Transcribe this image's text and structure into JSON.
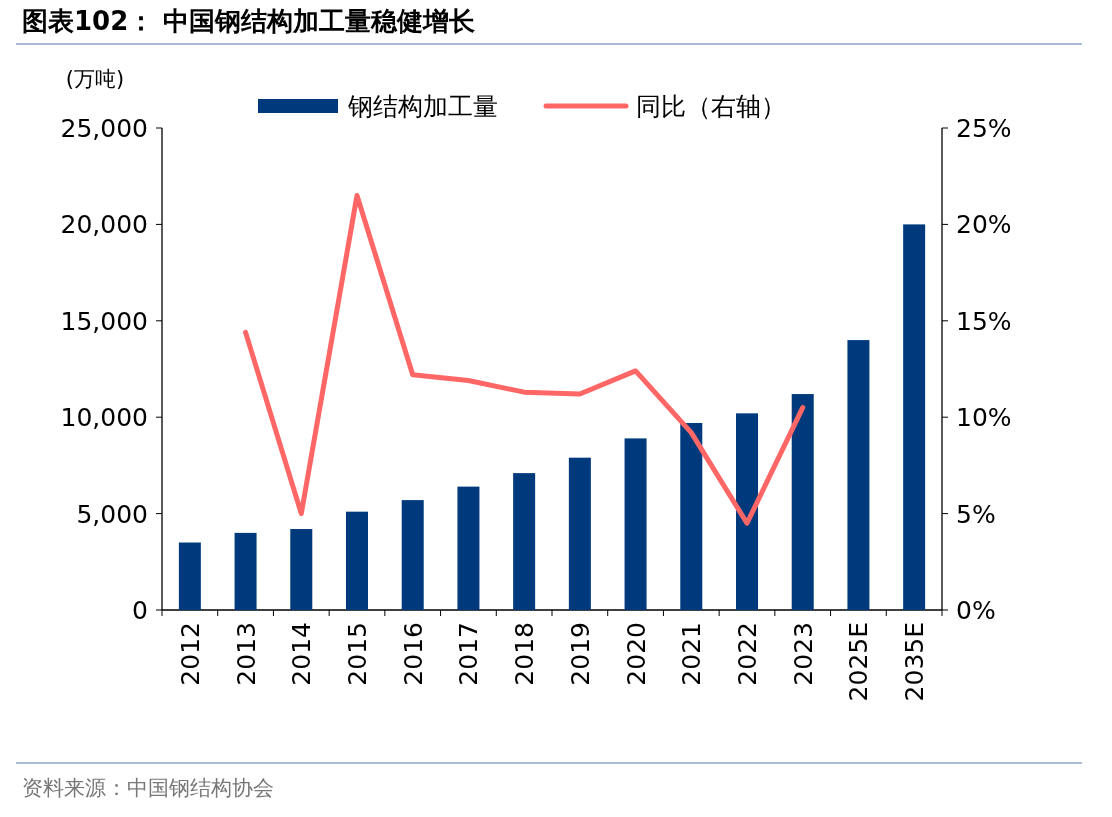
{
  "chart_data": {
    "type": "bar",
    "title": "图表102：  中国钢结构加工量稳健增长",
    "ylabel": "(万吨)",
    "categories": [
      "2012",
      "2013",
      "2014",
      "2015",
      "2016",
      "2017",
      "2018",
      "2019",
      "2020",
      "2021",
      "2022",
      "2023",
      "2025E",
      "2035E"
    ],
    "series": [
      {
        "name": "钢结构加工量",
        "color": "#003a7d",
        "values": [
          3500,
          4000,
          4200,
          5100,
          5700,
          6400,
          7100,
          7900,
          8900,
          9700,
          10200,
          11200,
          14000,
          20000
        ]
      },
      {
        "name": "同比（右轴）",
        "type": "line",
        "axis": "y2",
        "color": "#ff6666",
        "values": [
          null,
          14.4,
          5.0,
          21.5,
          12.2,
          11.9,
          11.3,
          11.2,
          12.4,
          9.2,
          4.5,
          10.5,
          null,
          null
        ]
      }
    ],
    "ylim": [
      0,
      25000
    ],
    "yticks": [
      {
        "value": 0,
        "label": "0"
      },
      {
        "value": 5000,
        "label": "5,000"
      },
      {
        "value": 10000,
        "label": "10,000"
      },
      {
        "value": 15000,
        "label": "15,000"
      },
      {
        "value": 20000,
        "label": "20,000"
      },
      {
        "value": 25000,
        "label": "25,000"
      }
    ],
    "y2lim": [
      0,
      25
    ],
    "y2ticks": [
      {
        "value": 0,
        "label": "0%"
      },
      {
        "value": 5,
        "label": "5%"
      },
      {
        "value": 10,
        "label": "10%"
      },
      {
        "value": 15,
        "label": "15%"
      },
      {
        "value": 20,
        "label": "20%"
      },
      {
        "value": 25,
        "label": "25%"
      }
    ],
    "legend": "top",
    "annotations": [
      "资料来源：中国钢结构协会"
    ]
  }
}
